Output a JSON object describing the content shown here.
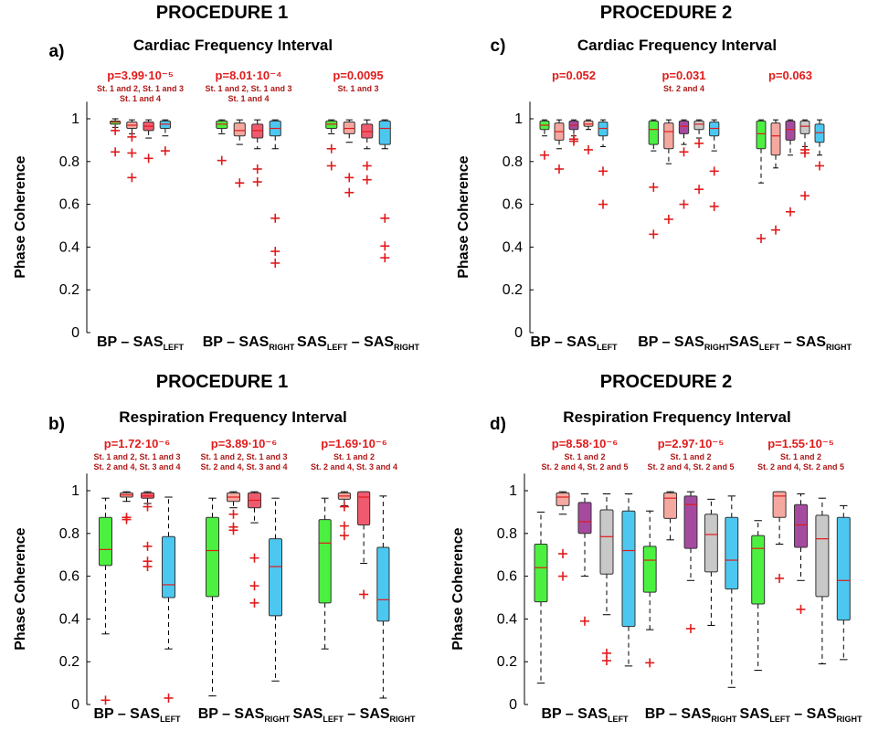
{
  "chart_data": [
    {
      "type": "box",
      "panel": "a)",
      "procedure": "PROCEDURE 1",
      "title": "Cardiac Frequency Interval",
      "ylabel": "Phase Coherence",
      "ylim": [
        0,
        1.08
      ],
      "yticks": [
        "0",
        "0.2",
        "0.4",
        "0.6",
        "0.8",
        "1"
      ],
      "groups": [
        {
          "label": "BP – SAS",
          "sub": "LEFT",
          "pvalue": "p=3.99·10⁻⁵",
          "comparisons": [
            "St. 1 and 2, St. 1 and 3",
            "St. 1 and 4"
          ],
          "boxes": [
            {
              "color": "#4cf040",
              "q1": 0.975,
              "med": 0.985,
              "q3": 0.99,
              "wlo": 0.96,
              "whi": 1.0,
              "out": [
                0.945,
                0.845
              ]
            },
            {
              "color": "#f5a8a0",
              "q1": 0.955,
              "med": 0.97,
              "q3": 0.985,
              "wlo": 0.93,
              "whi": 0.995,
              "out": [
                0.915,
                0.84,
                0.725
              ]
            },
            {
              "color": "#f05a6e",
              "q1": 0.945,
              "med": 0.965,
              "q3": 0.985,
              "wlo": 0.91,
              "whi": 0.995,
              "out": [
                0.815
              ]
            },
            {
              "color": "#4cc8f0",
              "q1": 0.955,
              "med": 0.975,
              "q3": 0.99,
              "wlo": 0.92,
              "whi": 0.995,
              "out": [
                0.85
              ]
            }
          ]
        },
        {
          "label": "BP – SAS",
          "sub": "RIGHT",
          "pvalue": "p=8.01·10⁻⁴",
          "comparisons": [
            "St. 1 and 2, St. 1 and 3",
            "St. 1 and 4"
          ],
          "boxes": [
            {
              "color": "#4cf040",
              "q1": 0.955,
              "med": 0.975,
              "q3": 0.99,
              "wlo": 0.93,
              "whi": 0.995,
              "out": [
                0.805
              ]
            },
            {
              "color": "#f5a8a0",
              "q1": 0.92,
              "med": 0.945,
              "q3": 0.98,
              "wlo": 0.88,
              "whi": 0.995,
              "out": [
                0.7
              ]
            },
            {
              "color": "#f05a6e",
              "q1": 0.91,
              "med": 0.945,
              "q3": 0.975,
              "wlo": 0.86,
              "whi": 0.995,
              "out": [
                0.765,
                0.705
              ]
            },
            {
              "color": "#4cc8f0",
              "q1": 0.92,
              "med": 0.955,
              "q3": 0.99,
              "wlo": 0.86,
              "whi": 0.995,
              "out": [
                0.535,
                0.38,
                0.325
              ]
            }
          ]
        },
        {
          "label": "SAS",
          "sub": "LEFT",
          "label2": " – SAS",
          "sub2": "RIGHT",
          "pvalue": "p=0.0095",
          "comparisons": [
            "St. 1 and 3"
          ],
          "boxes": [
            {
              "color": "#4cf040",
              "q1": 0.955,
              "med": 0.975,
              "q3": 0.99,
              "wlo": 0.93,
              "whi": 0.995,
              "out": [
                0.86,
                0.78
              ]
            },
            {
              "color": "#f5a8a0",
              "q1": 0.93,
              "med": 0.955,
              "q3": 0.985,
              "wlo": 0.89,
              "whi": 0.995,
              "out": [
                0.725,
                0.655
              ]
            },
            {
              "color": "#f05a6e",
              "q1": 0.91,
              "med": 0.94,
              "q3": 0.975,
              "wlo": 0.86,
              "whi": 0.995,
              "out": [
                0.78,
                0.715
              ]
            },
            {
              "color": "#4cc8f0",
              "q1": 0.88,
              "med": 0.955,
              "q3": 0.99,
              "wlo": 0.86,
              "whi": 0.995,
              "out": [
                0.535,
                0.405,
                0.35
              ]
            }
          ]
        }
      ]
    },
    {
      "type": "box",
      "panel": "c)",
      "procedure": "PROCEDURE 2",
      "title": "Cardiac Frequency Interval",
      "ylabel": "Phase Coherence",
      "ylim": [
        0,
        1.08
      ],
      "yticks": [
        "0",
        "0.2",
        "0.4",
        "0.6",
        "0.8",
        "1"
      ],
      "groups": [
        {
          "label": "BP – SAS",
          "sub": "LEFT",
          "pvalue": "p=0.052",
          "comparisons": [],
          "boxes": [
            {
              "color": "#4cf040",
              "q1": 0.95,
              "med": 0.97,
              "q3": 0.99,
              "wlo": 0.92,
              "whi": 0.995,
              "out": [
                0.83
              ]
            },
            {
              "color": "#f5a8a0",
              "q1": 0.9,
              "med": 0.94,
              "q3": 0.98,
              "wlo": 0.86,
              "whi": 0.995,
              "out": [
                0.765
              ]
            },
            {
              "color": "#a64aa0",
              "q1": 0.95,
              "med": 0.97,
              "q3": 0.99,
              "wlo": 0.92,
              "whi": 0.995,
              "out": [
                0.905,
                0.895
              ]
            },
            {
              "color": "#f5b8b0",
              "q1": 0.965,
              "med": 0.975,
              "q3": 0.99,
              "wlo": 0.95,
              "whi": 0.995,
              "out": [
                0.855
              ]
            },
            {
              "color": "#4cc8f0",
              "q1": 0.92,
              "med": 0.955,
              "q3": 0.985,
              "wlo": 0.87,
              "whi": 0.995,
              "out": [
                0.755,
                0.6
              ]
            }
          ]
        },
        {
          "label": "BP – SAS",
          "sub": "RIGHT",
          "pvalue": "p=0.031",
          "comparisons": [
            "St. 2 and 4"
          ],
          "boxes": [
            {
              "color": "#4cf040",
              "q1": 0.88,
              "med": 0.95,
              "q3": 0.99,
              "wlo": 0.85,
              "whi": 0.995,
              "out": [
                0.68,
                0.46
              ]
            },
            {
              "color": "#f5a8a0",
              "q1": 0.86,
              "med": 0.94,
              "q3": 0.98,
              "wlo": 0.79,
              "whi": 0.995,
              "out": [
                0.53
              ]
            },
            {
              "color": "#a64aa0",
              "q1": 0.93,
              "med": 0.965,
              "q3": 0.99,
              "wlo": 0.88,
              "whi": 0.995,
              "out": [
                0.845,
                0.6
              ]
            },
            {
              "color": "#c8c8c8",
              "q1": 0.95,
              "med": 0.975,
              "q3": 0.99,
              "wlo": 0.91,
              "whi": 0.995,
              "out": [
                0.885,
                0.67
              ]
            },
            {
              "color": "#4cc8f0",
              "q1": 0.92,
              "med": 0.955,
              "q3": 0.985,
              "wlo": 0.85,
              "whi": 0.995,
              "out": [
                0.755,
                0.59
              ]
            }
          ]
        },
        {
          "label": "SAS",
          "sub": "LEFT",
          "label2": " – SAS",
          "sub2": "RIGHT",
          "pvalue": "p=0.063",
          "comparisons": [],
          "boxes": [
            {
              "color": "#4cf040",
              "q1": 0.86,
              "med": 0.93,
              "q3": 0.99,
              "wlo": 0.7,
              "whi": 0.995,
              "out": [
                0.44
              ]
            },
            {
              "color": "#f5a8a0",
              "q1": 0.83,
              "med": 0.92,
              "q3": 0.98,
              "wlo": 0.77,
              "whi": 0.995,
              "out": [
                0.48
              ]
            },
            {
              "color": "#a64aa0",
              "q1": 0.9,
              "med": 0.95,
              "q3": 0.99,
              "wlo": 0.83,
              "whi": 0.995,
              "out": [
                0.565
              ]
            },
            {
              "color": "#c8c8c8",
              "q1": 0.93,
              "med": 0.965,
              "q3": 0.99,
              "wlo": 0.87,
              "whi": 0.995,
              "out": [
                0.855,
                0.84,
                0.64
              ]
            },
            {
              "color": "#4cc8f0",
              "q1": 0.89,
              "med": 0.935,
              "q3": 0.975,
              "wlo": 0.83,
              "whi": 0.995,
              "out": [
                0.78
              ]
            }
          ]
        }
      ]
    },
    {
      "type": "box",
      "panel": "b)",
      "procedure": "PROCEDURE 1",
      "title": "Respiration Frequency Interval",
      "ylabel": "Phase Coherence",
      "ylim": [
        0,
        1.08
      ],
      "yticks": [
        "0",
        "0.2",
        "0.4",
        "0.6",
        "0.8",
        "1"
      ],
      "groups": [
        {
          "label": "BP – SAS",
          "sub": "LEFT",
          "pvalue": "p=1.72·10⁻⁶",
          "comparisons": [
            "St. 1 and 2, St. 1 and 3",
            "St. 2 and 4, St. 3 and 4"
          ],
          "boxes": [
            {
              "color": "#4cf040",
              "q1": 0.65,
              "med": 0.725,
              "q3": 0.875,
              "wlo": 0.33,
              "whi": 0.965,
              "out": [
                0.02
              ]
            },
            {
              "color": "#f5a8a0",
              "q1": 0.97,
              "med": 0.98,
              "q3": 0.99,
              "wlo": 0.95,
              "whi": 0.995,
              "out": [
                0.875,
                0.865
              ]
            },
            {
              "color": "#f05a6e",
              "q1": 0.965,
              "med": 0.975,
              "q3": 0.99,
              "wlo": 0.94,
              "whi": 0.995,
              "out": [
                0.925,
                0.74,
                0.67,
                0.645
              ]
            },
            {
              "color": "#4cc8f0",
              "q1": 0.5,
              "med": 0.56,
              "q3": 0.785,
              "wlo": 0.26,
              "whi": 0.97,
              "out": [
                0.03
              ]
            }
          ]
        },
        {
          "label": "BP – SAS",
          "sub": "RIGHT",
          "pvalue": "p=3.89·10⁻⁶",
          "comparisons": [
            "St. 1 and 2, St. 1 and 3",
            "St. 2 and 4, St. 3 and 4"
          ],
          "boxes": [
            {
              "color": "#4cf040",
              "q1": 0.505,
              "med": 0.72,
              "q3": 0.875,
              "wlo": 0.04,
              "whi": 0.965,
              "out": []
            },
            {
              "color": "#f5a8a0",
              "q1": 0.95,
              "med": 0.97,
              "q3": 0.99,
              "wlo": 0.92,
              "whi": 0.995,
              "out": [
                0.89,
                0.83,
                0.815
              ]
            },
            {
              "color": "#f05a6e",
              "q1": 0.92,
              "med": 0.955,
              "q3": 0.99,
              "wlo": 0.85,
              "whi": 0.995,
              "out": [
                0.685,
                0.555,
                0.475
              ]
            },
            {
              "color": "#4cc8f0",
              "q1": 0.415,
              "med": 0.645,
              "q3": 0.775,
              "wlo": 0.11,
              "whi": 0.965,
              "out": []
            }
          ]
        },
        {
          "label": "SAS",
          "sub": "LEFT",
          "label2": " – SAS",
          "sub2": "RIGHT",
          "pvalue": "p=1.69·10⁻⁶",
          "comparisons": [
            "St. 1 and 2",
            "St. 2 and 4, St. 3 and 4"
          ],
          "boxes": [
            {
              "color": "#4cf040",
              "q1": 0.475,
              "med": 0.755,
              "q3": 0.865,
              "wlo": 0.26,
              "whi": 0.965,
              "out": []
            },
            {
              "color": "#f5a8a0",
              "q1": 0.96,
              "med": 0.975,
              "q3": 0.99,
              "wlo": 0.93,
              "whi": 0.995,
              "out": [
                0.925,
                0.835,
                0.79
              ]
            },
            {
              "color": "#f05a6e",
              "q1": 0.84,
              "med": 0.97,
              "q3": 0.995,
              "wlo": 0.66,
              "whi": 0.995,
              "out": [
                0.515
              ]
            },
            {
              "color": "#4cc8f0",
              "q1": 0.39,
              "med": 0.49,
              "q3": 0.735,
              "wlo": 0.03,
              "whi": 0.975,
              "out": []
            }
          ]
        }
      ]
    },
    {
      "type": "box",
      "panel": "d)",
      "procedure": "PROCEDURE 2",
      "title": "Respiration Frequency Interval",
      "ylabel": "Phase Coherence",
      "ylim": [
        0,
        1.08
      ],
      "yticks": [
        "0",
        "0.2",
        "0.4",
        "0.6",
        "0.8",
        "1"
      ],
      "groups": [
        {
          "label": "BP – SAS",
          "sub": "LEFT",
          "pvalue": "p=8.58·10⁻⁶",
          "comparisons": [
            "St. 1 and 2",
            "St. 2 and 4, St. 2 and 5"
          ],
          "boxes": [
            {
              "color": "#4cf040",
              "q1": 0.48,
              "med": 0.64,
              "q3": 0.75,
              "wlo": 0.1,
              "whi": 0.9,
              "out": []
            },
            {
              "color": "#f5a8a0",
              "q1": 0.93,
              "med": 0.97,
              "q3": 0.99,
              "wlo": 0.89,
              "whi": 0.995,
              "out": [
                0.705,
                0.6
              ]
            },
            {
              "color": "#a64aa0",
              "q1": 0.8,
              "med": 0.855,
              "q3": 0.945,
              "wlo": 0.6,
              "whi": 0.985,
              "out": [
                0.39
              ]
            },
            {
              "color": "#c8c8c8",
              "q1": 0.61,
              "med": 0.785,
              "q3": 0.91,
              "wlo": 0.42,
              "whi": 0.985,
              "out": [
                0.24,
                0.205
              ]
            },
            {
              "color": "#4cc8f0",
              "q1": 0.365,
              "med": 0.72,
              "q3": 0.905,
              "wlo": 0.18,
              "whi": 0.985,
              "out": []
            }
          ]
        },
        {
          "label": "BP – SAS",
          "sub": "RIGHT",
          "pvalue": "p=2.97·10⁻⁵",
          "comparisons": [
            "St. 1 and 2",
            "St. 2 and 4, St. 2 and 5"
          ],
          "boxes": [
            {
              "color": "#4cf040",
              "q1": 0.525,
              "med": 0.675,
              "q3": 0.74,
              "wlo": 0.35,
              "whi": 0.905,
              "out": [
                0.195
              ]
            },
            {
              "color": "#f5a8a0",
              "q1": 0.87,
              "med": 0.965,
              "q3": 0.99,
              "wlo": 0.77,
              "whi": 0.995,
              "out": []
            },
            {
              "color": "#a64aa0",
              "q1": 0.73,
              "med": 0.935,
              "q3": 0.975,
              "wlo": 0.58,
              "whi": 0.995,
              "out": [
                0.355
              ]
            },
            {
              "color": "#c8c8c8",
              "q1": 0.62,
              "med": 0.795,
              "q3": 0.89,
              "wlo": 0.37,
              "whi": 0.96,
              "out": []
            },
            {
              "color": "#4cc8f0",
              "q1": 0.54,
              "med": 0.675,
              "q3": 0.875,
              "wlo": 0.08,
              "whi": 0.975,
              "out": []
            }
          ]
        },
        {
          "label": "SAS",
          "sub": "LEFT",
          "label2": " – SAS",
          "sub2": "RIGHT",
          "pvalue": "p=1.55·10⁻⁵",
          "comparisons": [
            "St. 1 and 2",
            "St. 2 and 4, St. 2 and 5"
          ],
          "boxes": [
            {
              "color": "#4cf040",
              "q1": 0.47,
              "med": 0.73,
              "q3": 0.79,
              "wlo": 0.16,
              "whi": 0.86,
              "out": []
            },
            {
              "color": "#f5a8a0",
              "q1": 0.875,
              "med": 0.975,
              "q3": 0.995,
              "wlo": 0.75,
              "whi": 0.995,
              "out": [
                0.59
              ]
            },
            {
              "color": "#a64aa0",
              "q1": 0.735,
              "med": 0.84,
              "q3": 0.935,
              "wlo": 0.58,
              "whi": 0.985,
              "out": [
                0.445
              ]
            },
            {
              "color": "#c8c8c8",
              "q1": 0.505,
              "med": 0.775,
              "q3": 0.885,
              "wlo": 0.19,
              "whi": 0.965,
              "out": []
            },
            {
              "color": "#4cc8f0",
              "q1": 0.395,
              "med": 0.58,
              "q3": 0.875,
              "wlo": 0.21,
              "whi": 0.93,
              "out": []
            }
          ]
        }
      ]
    }
  ]
}
